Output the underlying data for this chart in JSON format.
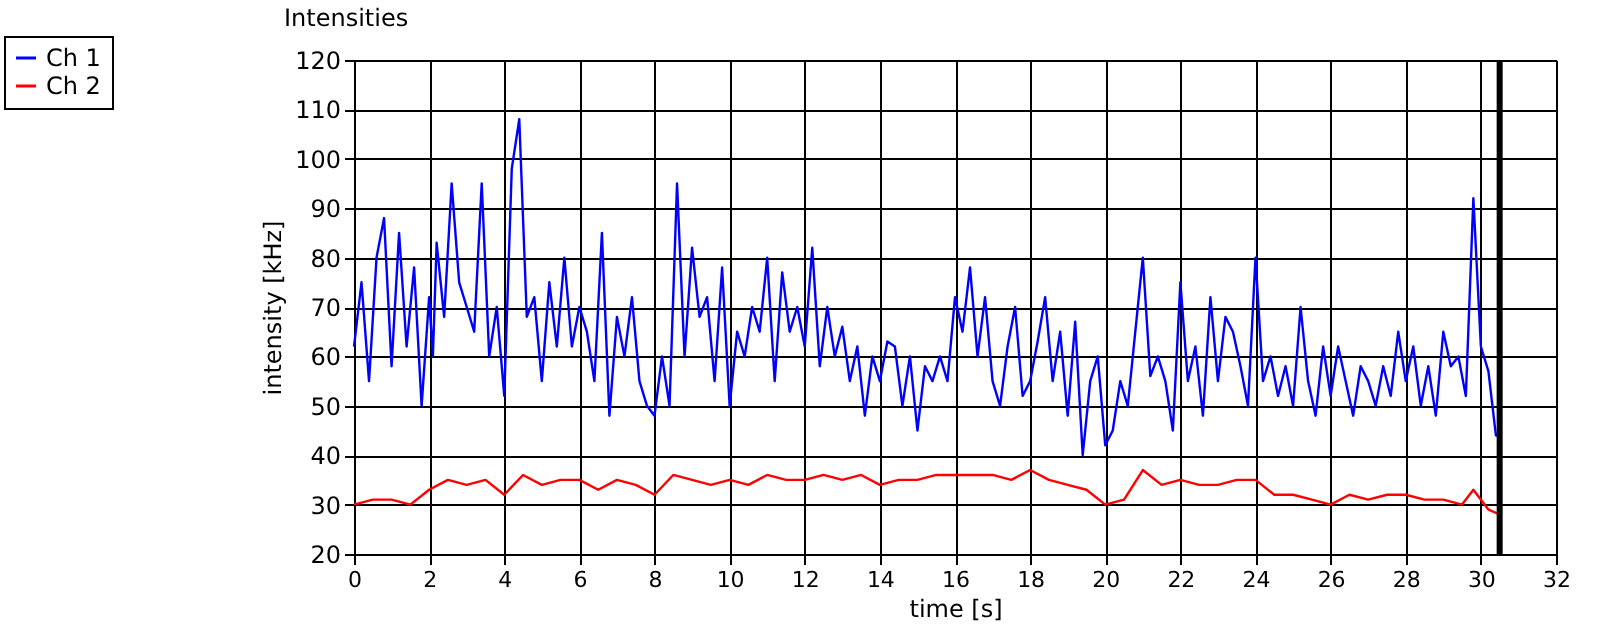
{
  "chart_data": {
    "type": "line",
    "title": "Intensities",
    "xlabel": "time [s]",
    "ylabel": "intensity [kHz]",
    "xlim": [
      0,
      32
    ],
    "xticks": [
      0,
      2,
      4,
      6,
      8,
      10,
      12,
      14,
      16,
      18,
      20,
      22,
      24,
      26,
      28,
      30,
      32
    ],
    "ylim": [
      20,
      120
    ],
    "yticks": [
      20,
      30,
      40,
      50,
      60,
      70,
      80,
      90,
      100,
      110,
      120
    ],
    "grid": true,
    "legend": "top left",
    "marker": "none",
    "line_style": "solid",
    "ref_lines": [
      {
        "axis": "x",
        "value": 30.5,
        "color": "#000000"
      }
    ],
    "series": [
      {
        "name": "Ch 1",
        "color": "#0000ff",
        "x": [
          0,
          0.2,
          0.4,
          0.6,
          0.8,
          1.0,
          1.2,
          1.4,
          1.6,
          1.8,
          2.0,
          2.1,
          2.2,
          2.4,
          2.6,
          2.8,
          3.0,
          3.2,
          3.4,
          3.6,
          3.8,
          4.0,
          4.2,
          4.4,
          4.6,
          4.8,
          5.0,
          5.2,
          5.4,
          5.6,
          5.8,
          6.0,
          6.2,
          6.4,
          6.6,
          6.8,
          7.0,
          7.2,
          7.4,
          7.6,
          7.8,
          8.0,
          8.2,
          8.4,
          8.6,
          8.8,
          9.0,
          9.2,
          9.4,
          9.6,
          9.8,
          10.0,
          10.2,
          10.4,
          10.6,
          10.8,
          11.0,
          11.2,
          11.4,
          11.6,
          11.8,
          12.0,
          12.2,
          12.4,
          12.6,
          12.8,
          13.0,
          13.2,
          13.4,
          13.6,
          13.8,
          14.0,
          14.2,
          14.4,
          14.6,
          14.8,
          15.0,
          15.2,
          15.4,
          15.6,
          15.8,
          16.0,
          16.2,
          16.4,
          16.6,
          16.8,
          17.0,
          17.2,
          17.4,
          17.6,
          17.8,
          18.0,
          18.2,
          18.4,
          18.6,
          18.8,
          19.0,
          19.2,
          19.4,
          19.6,
          19.8,
          20.0,
          20.2,
          20.4,
          20.6,
          20.8,
          21.0,
          21.2,
          21.4,
          21.6,
          21.8,
          22.0,
          22.2,
          22.4,
          22.6,
          22.8,
          23.0,
          23.2,
          23.4,
          23.6,
          23.8,
          24.0,
          24.2,
          24.4,
          24.6,
          24.8,
          25.0,
          25.2,
          25.4,
          25.6,
          25.8,
          26.0,
          26.2,
          26.4,
          26.6,
          26.8,
          27.0,
          27.2,
          27.4,
          27.6,
          27.8,
          28.0,
          28.2,
          28.4,
          28.6,
          28.8,
          29.0,
          29.2,
          29.4,
          29.6,
          29.8,
          30.0,
          30.2,
          30.4,
          30.5
        ],
        "values": [
          62,
          75,
          55,
          80,
          88,
          58,
          85,
          62,
          78,
          50,
          72,
          60,
          83,
          68,
          95,
          75,
          70,
          65,
          95,
          60,
          70,
          52,
          98,
          108,
          68,
          72,
          55,
          75,
          62,
          80,
          62,
          70,
          65,
          55,
          85,
          48,
          68,
          60,
          72,
          55,
          50,
          48,
          60,
          50,
          95,
          60,
          82,
          68,
          72,
          55,
          78,
          50,
          65,
          60,
          70,
          65,
          80,
          55,
          77,
          65,
          70,
          62,
          82,
          58,
          70,
          60,
          66,
          55,
          62,
          48,
          60,
          55,
          63,
          62,
          50,
          60,
          45,
          58,
          55,
          60,
          55,
          72,
          65,
          78,
          60,
          72,
          55,
          50,
          62,
          70,
          52,
          55,
          63,
          72,
          55,
          65,
          48,
          67,
          40,
          55,
          60,
          42,
          45,
          55,
          50,
          65,
          80,
          56,
          60,
          55,
          45,
          75,
          55,
          62,
          48,
          72,
          55,
          68,
          65,
          58,
          50,
          80,
          55,
          60,
          52,
          58,
          50,
          70,
          55,
          48,
          62,
          52,
          62,
          55,
          48,
          58,
          55,
          50,
          58,
          52,
          65,
          55,
          62,
          50,
          58,
          48,
          65,
          58,
          60,
          52,
          92,
          62,
          57,
          44,
          44
        ]
      },
      {
        "name": "Ch 2",
        "color": "#ff0000",
        "x": [
          0,
          0.5,
          1.0,
          1.5,
          2.0,
          2.5,
          3.0,
          3.5,
          4.0,
          4.5,
          5.0,
          5.5,
          6.0,
          6.5,
          7.0,
          7.5,
          8.0,
          8.5,
          9.0,
          9.5,
          10.0,
          10.5,
          11.0,
          11.5,
          12.0,
          12.5,
          13.0,
          13.5,
          14.0,
          14.5,
          15.0,
          15.5,
          16.0,
          16.5,
          17.0,
          17.5,
          18.0,
          18.5,
          19.0,
          19.5,
          20.0,
          20.5,
          21.0,
          21.5,
          22.0,
          22.5,
          23.0,
          23.5,
          24.0,
          24.5,
          25.0,
          25.5,
          26.0,
          26.5,
          27.0,
          27.5,
          28.0,
          28.5,
          29.0,
          29.5,
          29.8,
          30.2,
          30.5
        ],
        "values": [
          30,
          31,
          31,
          30,
          33,
          35,
          34,
          35,
          32,
          36,
          34,
          35,
          35,
          33,
          35,
          34,
          32,
          36,
          35,
          34,
          35,
          34,
          36,
          35,
          35,
          36,
          35,
          36,
          34,
          35,
          35,
          36,
          36,
          36,
          36,
          35,
          37,
          35,
          34,
          33,
          30,
          31,
          37,
          34,
          35,
          34,
          34,
          35,
          35,
          32,
          32,
          31,
          30,
          32,
          31,
          32,
          32,
          31,
          31,
          30,
          33,
          29,
          28
        ]
      }
    ]
  }
}
